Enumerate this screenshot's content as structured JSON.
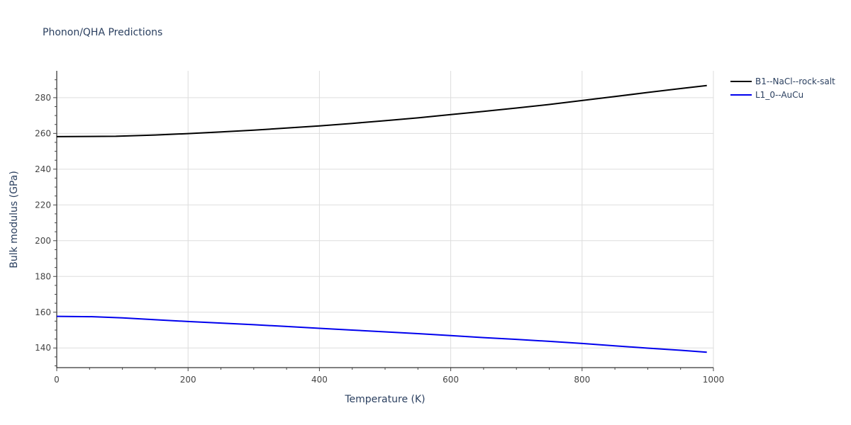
{
  "chart_data": {
    "type": "line",
    "title": "Phonon/QHA Predictions",
    "xlabel": "Temperature (K)",
    "ylabel": "Bulk modulus (GPa)",
    "xlim": [
      0,
      1000
    ],
    "ylim": [
      129,
      295
    ],
    "x_ticks": [
      0,
      200,
      400,
      600,
      800,
      1000
    ],
    "y_ticks": [
      140,
      160,
      180,
      200,
      220,
      240,
      260,
      280
    ],
    "grid": true,
    "legend_position": "top-right",
    "series": [
      {
        "name": "B1--NaCl--rock-salt",
        "color": "#000000",
        "x": [
          0,
          50,
          90,
          150,
          200,
          250,
          300,
          350,
          400,
          450,
          500,
          550,
          600,
          650,
          700,
          750,
          800,
          850,
          900,
          950,
          990
        ],
        "y": [
          258.2,
          258.3,
          258.4,
          259.1,
          259.9,
          260.8,
          261.8,
          263.0,
          264.2,
          265.6,
          267.1,
          268.7,
          270.5,
          272.3,
          274.2,
          276.2,
          278.4,
          280.6,
          282.9,
          285.1,
          286.8
        ]
      },
      {
        "name": "L1_0--AuCu",
        "color": "#0000ee",
        "x": [
          0,
          55,
          100,
          150,
          200,
          250,
          300,
          350,
          400,
          450,
          500,
          550,
          600,
          650,
          700,
          750,
          800,
          850,
          900,
          950,
          990
        ],
        "y": [
          157.7,
          157.5,
          156.8,
          155.8,
          154.8,
          153.9,
          153.0,
          152.0,
          151.0,
          150.0,
          149.0,
          148.0,
          146.9,
          145.8,
          144.8,
          143.7,
          142.5,
          141.2,
          139.9,
          138.7,
          137.6
        ]
      }
    ]
  }
}
